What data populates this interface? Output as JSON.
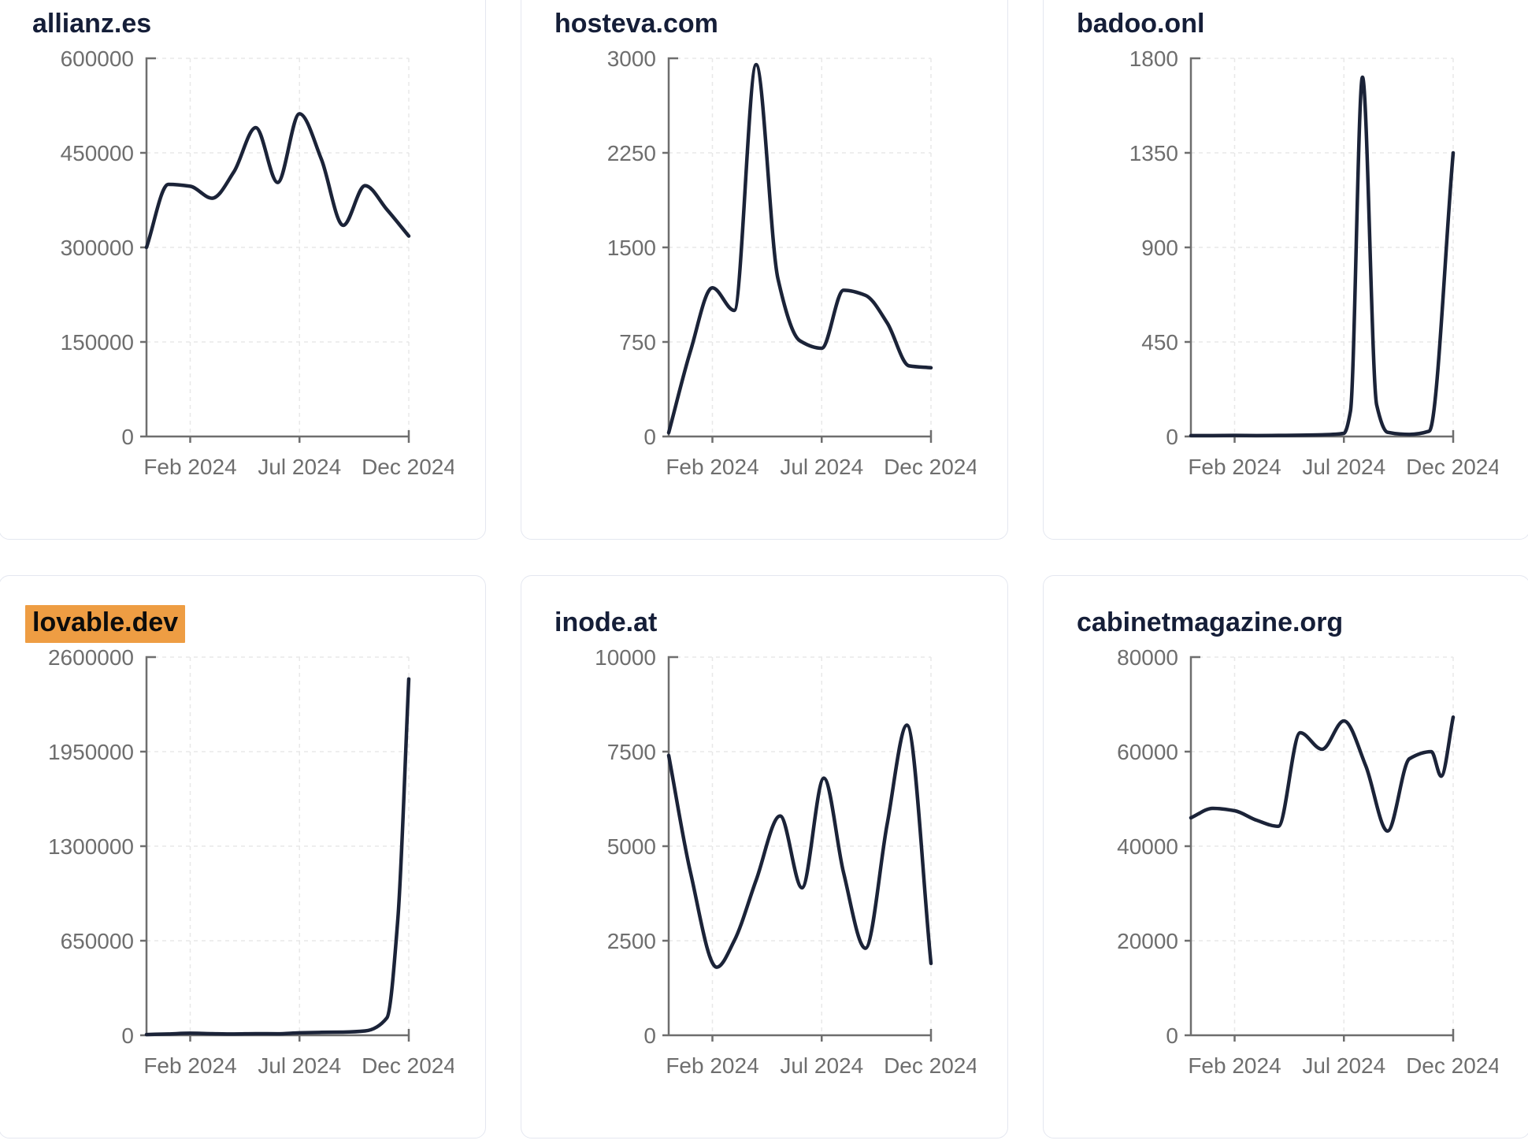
{
  "page": {
    "background": "#ffffff"
  },
  "colors": {
    "title": "#151e38",
    "line": "#1b2338",
    "axis": "#6e6e6e",
    "tick_label": "#6e6e6e",
    "grid_line": "#e8e8e8",
    "card_border": "#e4e7f0",
    "highlight_background": "#EE9D43",
    "highlight_text": "#0c0c0c"
  },
  "chart_data": [
    {
      "type": "line",
      "title": "allianz.es",
      "highlighted": false,
      "xlabel": "",
      "ylabel": "",
      "x_tick_labels": [
        "Feb 2024",
        "Jul 2024",
        "Dec 2024"
      ],
      "x_tick_months": [
        2,
        7,
        12
      ],
      "x_range_months": [
        0,
        12
      ],
      "y_ticks": [
        0,
        150000,
        300000,
        450000,
        600000
      ],
      "ylim": [
        0,
        600000
      ],
      "grid": true,
      "months": [
        0,
        1,
        2,
        3,
        4,
        5,
        6,
        7,
        8,
        9,
        10,
        11,
        12
      ],
      "values": [
        300000,
        400000,
        397000,
        378000,
        420000,
        490000,
        403000,
        512000,
        440000,
        335000,
        398000,
        360000,
        318000
      ]
    },
    {
      "type": "line",
      "title": "hosteva.com",
      "highlighted": false,
      "xlabel": "",
      "ylabel": "",
      "x_tick_labels": [
        "Feb 2024",
        "Jul 2024",
        "Dec 2024"
      ],
      "x_tick_months": [
        2,
        7,
        12
      ],
      "x_range_months": [
        0,
        12
      ],
      "y_ticks": [
        0,
        750,
        1500,
        2250,
        3000
      ],
      "ylim": [
        0,
        3000
      ],
      "grid": true,
      "months": [
        0,
        1,
        2,
        3,
        4,
        5,
        6,
        7,
        8,
        9,
        10,
        11,
        12
      ],
      "values": [
        30,
        680,
        1180,
        1000,
        2950,
        1250,
        760,
        700,
        1160,
        1120,
        900,
        560,
        545
      ]
    },
    {
      "type": "line",
      "title": "badoo.onl",
      "highlighted": false,
      "xlabel": "",
      "ylabel": "",
      "x_tick_labels": [
        "Feb 2024",
        "Jul 2024",
        "Dec 2024"
      ],
      "x_tick_months": [
        2,
        7,
        12
      ],
      "x_range_months": [
        0,
        12
      ],
      "y_ticks": [
        0,
        450,
        900,
        1350,
        1800
      ],
      "ylim": [
        0,
        1800
      ],
      "grid": true,
      "months": [
        0,
        1,
        2,
        3,
        4,
        5,
        6,
        7,
        7.3,
        7.85,
        8.5,
        9,
        10,
        10.9,
        12
      ],
      "values": [
        4,
        4,
        5,
        4,
        5,
        6,
        8,
        15,
        120,
        1710,
        150,
        20,
        10,
        25,
        1350
      ]
    },
    {
      "type": "line",
      "title": "lovable.dev",
      "highlighted": true,
      "xlabel": "",
      "ylabel": "",
      "x_tick_labels": [
        "Feb 2024",
        "Jul 2024",
        "Dec 2024"
      ],
      "x_tick_months": [
        2,
        7,
        12
      ],
      "x_range_months": [
        0,
        12
      ],
      "y_ticks": [
        0,
        650000,
        1300000,
        1950000,
        2600000
      ],
      "ylim": [
        0,
        2600000
      ],
      "grid": true,
      "months": [
        0,
        1,
        2,
        3,
        4,
        5,
        6,
        7,
        8,
        9,
        10,
        11,
        11.5,
        12
      ],
      "values": [
        5000,
        9000,
        14000,
        11000,
        9000,
        11000,
        10000,
        17000,
        20000,
        22000,
        30000,
        120000,
        800000,
        2450000
      ]
    },
    {
      "type": "line",
      "title": "inode.at",
      "highlighted": false,
      "xlabel": "",
      "ylabel": "",
      "x_tick_labels": [
        "Feb 2024",
        "Jul 2024",
        "Dec 2024"
      ],
      "x_tick_months": [
        2,
        7,
        12
      ],
      "x_range_months": [
        0,
        12
      ],
      "y_ticks": [
        0,
        2500,
        5000,
        7500,
        10000
      ],
      "ylim": [
        0,
        10000
      ],
      "grid": true,
      "months": [
        0,
        1,
        2.2,
        3,
        4,
        5.1,
        6.1,
        7.1,
        8,
        9,
        10,
        10.9,
        12
      ],
      "values": [
        7400,
        4300,
        1800,
        2500,
        4100,
        5800,
        3900,
        6800,
        4300,
        2300,
        5600,
        8200,
        1900
      ]
    },
    {
      "type": "line",
      "title": "cabinetmagazine.org",
      "highlighted": false,
      "xlabel": "",
      "ylabel": "",
      "x_tick_labels": [
        "Feb 2024",
        "Jul 2024",
        "Dec 2024"
      ],
      "x_tick_months": [
        2,
        7,
        12
      ],
      "x_range_months": [
        0,
        12
      ],
      "y_ticks": [
        0,
        20000,
        40000,
        60000,
        80000
      ],
      "ylim": [
        0,
        80000
      ],
      "grid": true,
      "months": [
        0,
        1,
        2,
        3,
        4,
        5,
        6,
        7,
        8,
        9,
        10,
        11,
        11.45,
        12
      ],
      "values": [
        46000,
        48000,
        47500,
        45500,
        44200,
        64000,
        60500,
        66500,
        57000,
        43200,
        58500,
        60000,
        54800,
        67300
      ]
    }
  ]
}
